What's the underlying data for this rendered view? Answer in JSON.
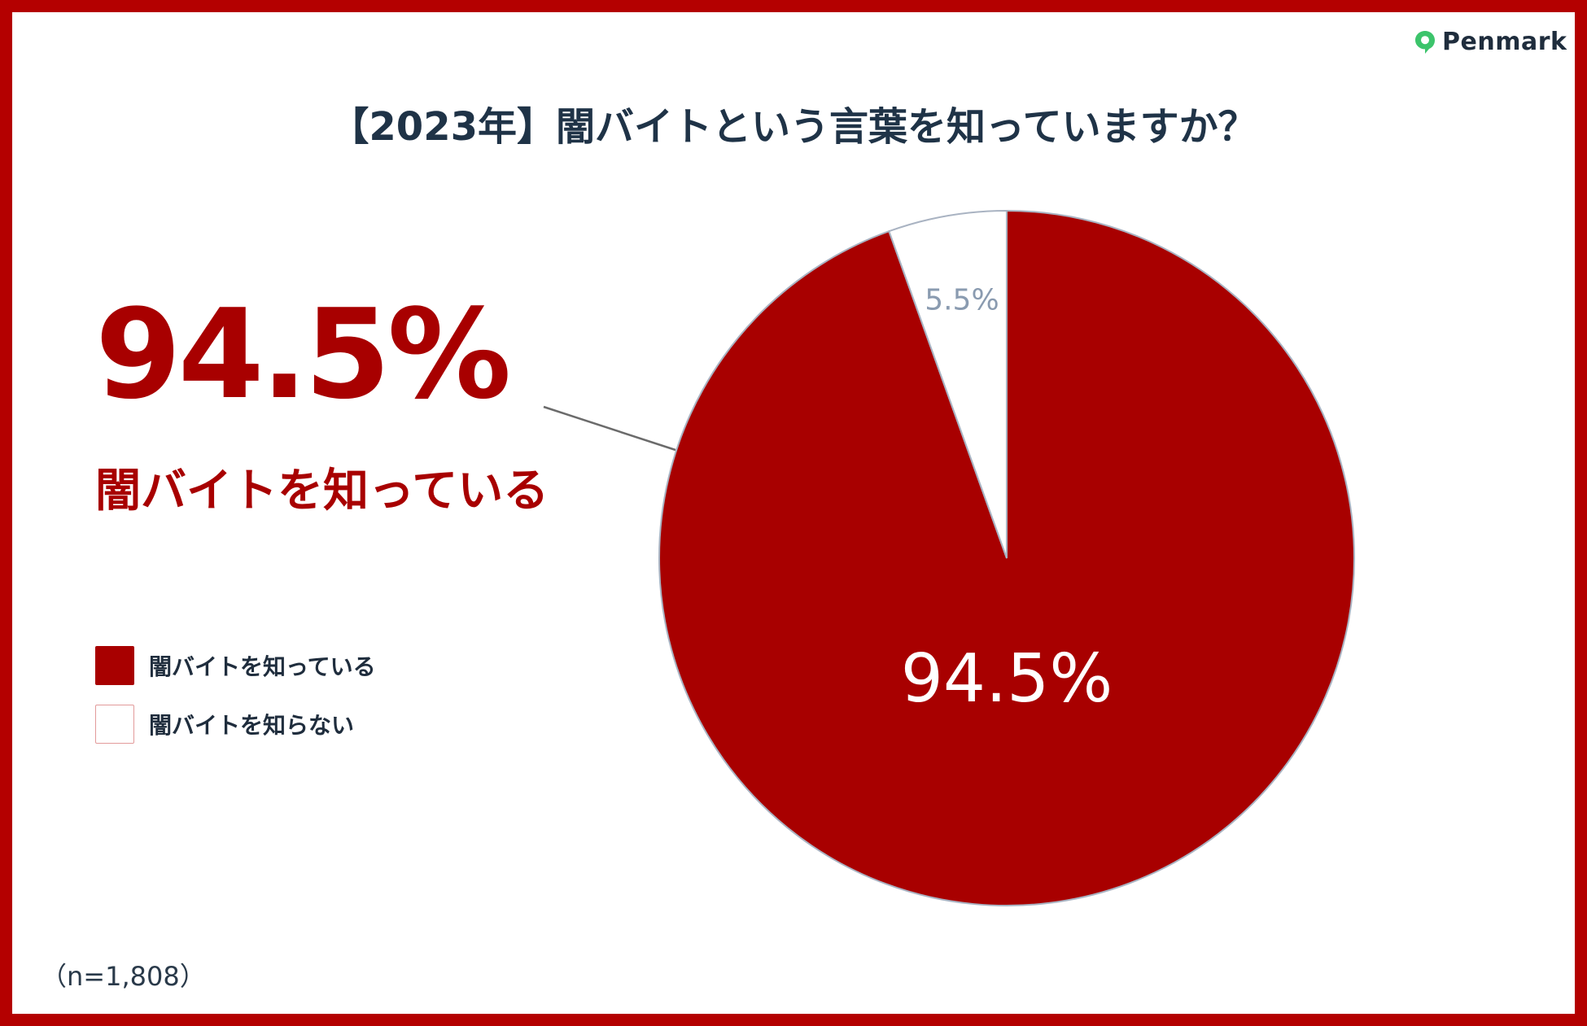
{
  "brand": {
    "name": "Penmark",
    "accent_color": "#3cc46b",
    "icon": "penmark-logo-icon"
  },
  "title": "【2023年】闇バイトという言葉を知っていますか？",
  "highlight": {
    "percent": "94.5%",
    "label": "闇バイトを知っている"
  },
  "sample_size": "（n=1,808）",
  "legend": [
    {
      "label": "闇バイトを知っている",
      "color": "#a80000"
    },
    {
      "label": "闇バイトを知らない",
      "color": "#ffffff"
    }
  ],
  "chart_data": {
    "type": "pie",
    "title": "【2023年】闇バイトという言葉を知っていますか？",
    "slices": [
      {
        "label": "闇バイトを知っている",
        "value": 94.5,
        "value_label": "94.5%",
        "color": "#a80000",
        "label_color": "#ffffff"
      },
      {
        "label": "闇バイトを知らない",
        "value": 5.5,
        "value_label": "5.5%",
        "color": "#ffffff",
        "label_color": "#8a9bb0"
      }
    ],
    "start": "12 o'clock",
    "direction": "clockwise",
    "legend_position": "left"
  }
}
